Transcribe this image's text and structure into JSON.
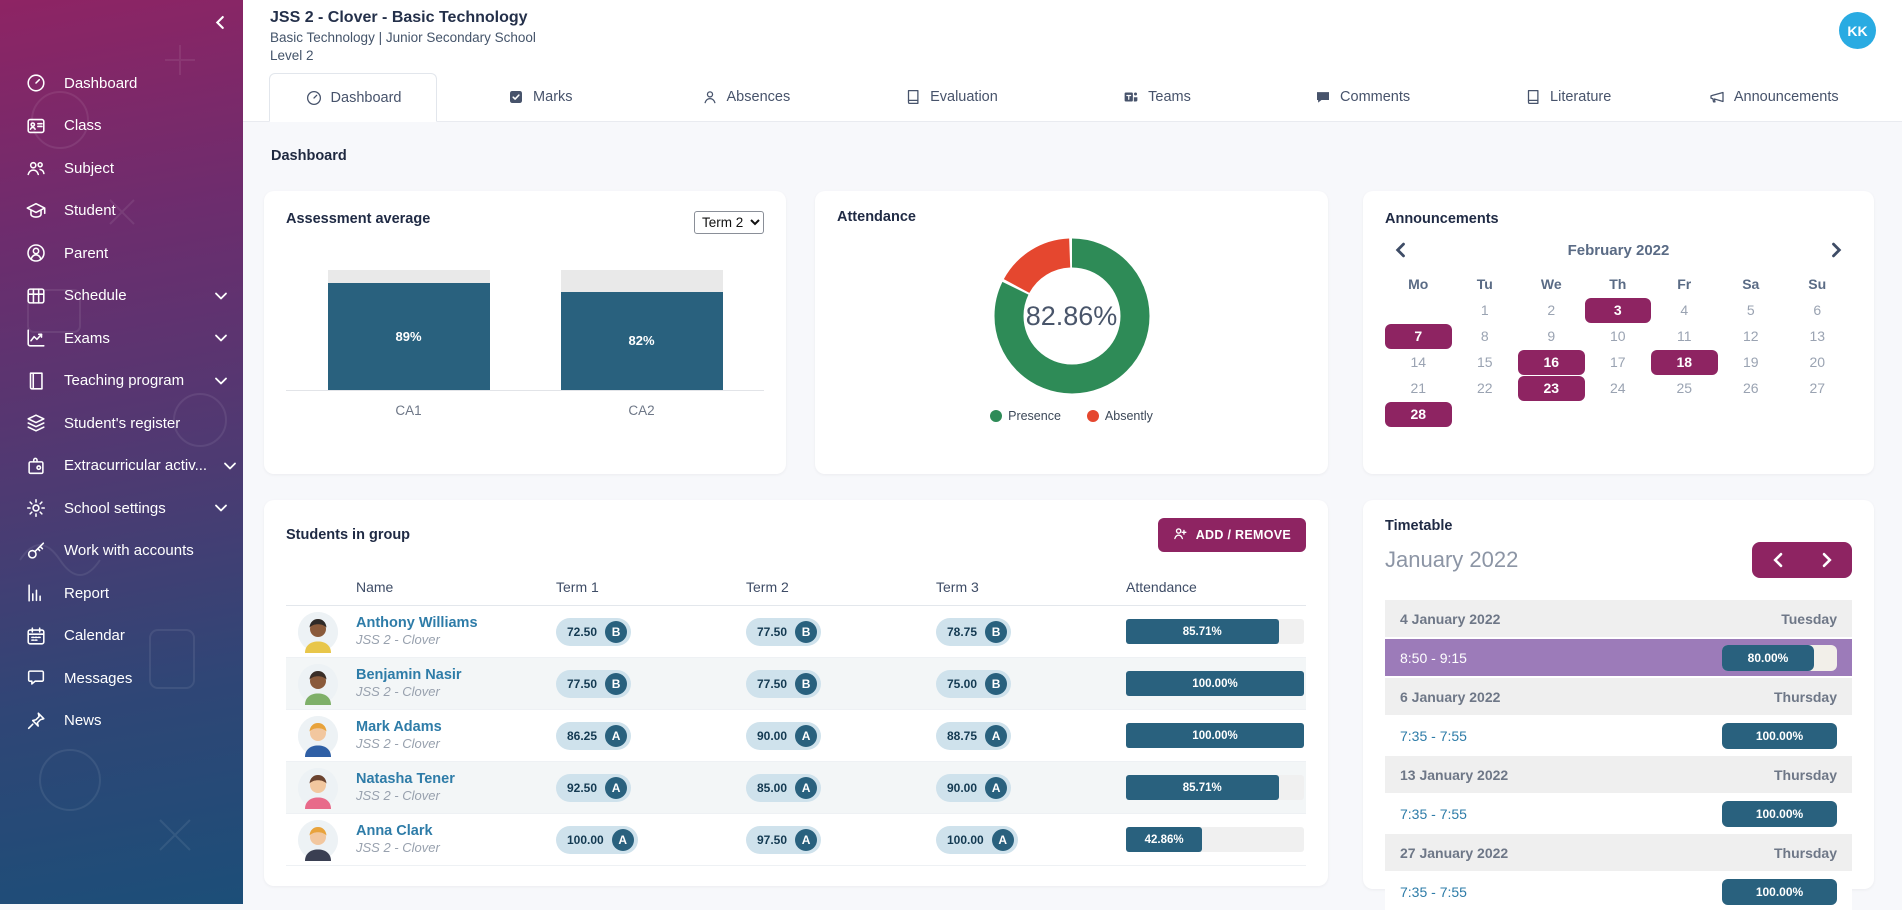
{
  "header": {
    "title": "JSS 2 - Clover - Basic Technology",
    "subtitle": "Basic Technology | Junior Secondary School",
    "level": "Level 2",
    "avatar_initials": "KK"
  },
  "breadcrumb": "Dashboard",
  "sidebar": {
    "items": [
      {
        "icon": "dashboard",
        "label": "Dashboard",
        "has_submenu": false
      },
      {
        "icon": "class",
        "label": "Class",
        "has_submenu": false
      },
      {
        "icon": "subject",
        "label": "Subject",
        "has_submenu": false
      },
      {
        "icon": "student",
        "label": "Student",
        "has_submenu": false
      },
      {
        "icon": "parent",
        "label": "Parent",
        "has_submenu": false
      },
      {
        "icon": "schedule",
        "label": "Schedule",
        "has_submenu": true
      },
      {
        "icon": "exams",
        "label": "Exams",
        "has_submenu": true
      },
      {
        "icon": "teaching-program",
        "label": "Teaching program",
        "has_submenu": true
      },
      {
        "icon": "students-register",
        "label": "Student's register",
        "has_submenu": false
      },
      {
        "icon": "extracurricular",
        "label": "Extracurricular activ...",
        "has_submenu": true
      },
      {
        "icon": "school-settings",
        "label": "School settings",
        "has_submenu": true
      },
      {
        "icon": "work-with-accounts",
        "label": "Work with accounts",
        "has_submenu": false
      },
      {
        "icon": "report",
        "label": "Report",
        "has_submenu": false
      },
      {
        "icon": "calendar",
        "label": "Calendar",
        "has_submenu": false
      },
      {
        "icon": "messages",
        "label": "Messages",
        "has_submenu": false
      },
      {
        "icon": "news",
        "label": "News",
        "has_submenu": false
      }
    ]
  },
  "tabs": [
    {
      "icon": "dashboard",
      "label": "Dashboard",
      "active": true
    },
    {
      "icon": "marks",
      "label": "Marks",
      "active": false
    },
    {
      "icon": "absences",
      "label": "Absences",
      "active": false
    },
    {
      "icon": "evaluation",
      "label": "Evaluation",
      "active": false
    },
    {
      "icon": "teams",
      "label": "Teams",
      "active": false
    },
    {
      "icon": "comments",
      "label": "Comments",
      "active": false
    },
    {
      "icon": "literature",
      "label": "Literature",
      "active": false
    },
    {
      "icon": "announcements",
      "label": "Announcements",
      "active": false
    }
  ],
  "assessment": {
    "title": "Assessment average",
    "term_selector": "Term 2"
  },
  "attendance": {
    "title": "Attendance"
  },
  "chart_data": [
    {
      "type": "bar",
      "title": "Assessment average",
      "categories": [
        "CA1",
        "CA2"
      ],
      "values": [
        89,
        82
      ],
      "value_labels": [
        "89%",
        "82%"
      ],
      "ylim": [
        0,
        100
      ],
      "bar_color": "#29617E",
      "track_color": "#E9E9E9",
      "grid": false
    },
    {
      "type": "pie",
      "title": "Attendance",
      "center_label": "82.86%",
      "slices": [
        {
          "label": "Presence",
          "value": 82.86,
          "color": "#2E8B57"
        },
        {
          "label": "Absently",
          "value": 17.14,
          "color": "#E5472F"
        }
      ],
      "legend_position": "bottom"
    }
  ],
  "announcements": {
    "title": "Announcements",
    "month": "February 2022",
    "day_names": [
      "Mo",
      "Tu",
      "We",
      "Th",
      "Fr",
      "Sa",
      "Su"
    ],
    "first_day_offset": 1,
    "days_in_month": 28,
    "highlighted_days": [
      3,
      7,
      16,
      18,
      23,
      28
    ]
  },
  "students": {
    "title": "Students in group",
    "add_button": "ADD / REMOVE",
    "columns": [
      "Name",
      "Term 1",
      "Term 2",
      "Term 3",
      "Attendance"
    ],
    "rows": [
      {
        "name": "Anthony Williams",
        "group": "JSS 2 - Clover",
        "terms": [
          {
            "score": "72.50",
            "grade": "B"
          },
          {
            "score": "77.50",
            "grade": "B"
          },
          {
            "score": "78.75",
            "grade": "B"
          }
        ],
        "attendance_pct": 85.71,
        "attendance_label": "85.71%",
        "avatar": {
          "skin": "#8A5A3B",
          "hair": "#2F2A28",
          "shirt": "#E8C64A"
        }
      },
      {
        "name": "Benjamin Nasir",
        "group": "JSS 2 - Clover",
        "terms": [
          {
            "score": "77.50",
            "grade": "B"
          },
          {
            "score": "77.50",
            "grade": "B"
          },
          {
            "score": "75.00",
            "grade": "B"
          }
        ],
        "attendance_pct": 100,
        "attendance_label": "100.00%",
        "avatar": {
          "skin": "#8A5A3B",
          "hair": "#3A2E28",
          "shirt": "#7FB069"
        }
      },
      {
        "name": "Mark Adams",
        "group": "JSS 2 - Clover",
        "terms": [
          {
            "score": "86.25",
            "grade": "A"
          },
          {
            "score": "90.00",
            "grade": "A"
          },
          {
            "score": "88.75",
            "grade": "A"
          }
        ],
        "attendance_pct": 100,
        "attendance_label": "100.00%",
        "avatar": {
          "skin": "#F2C79F",
          "hair": "#E8A33C",
          "shirt": "#2F5FA5"
        }
      },
      {
        "name": "Natasha Tener",
        "group": "JSS 2 - Clover",
        "terms": [
          {
            "score": "92.50",
            "grade": "A"
          },
          {
            "score": "85.00",
            "grade": "A"
          },
          {
            "score": "90.00",
            "grade": "A"
          }
        ],
        "attendance_pct": 85.71,
        "attendance_label": "85.71%",
        "avatar": {
          "skin": "#F2C79F",
          "hair": "#6B4430",
          "shirt": "#E86A8A"
        }
      },
      {
        "name": "Anna Clark",
        "group": "JSS 2 - Clover",
        "terms": [
          {
            "score": "100.00",
            "grade": "A"
          },
          {
            "score": "97.50",
            "grade": "A"
          },
          {
            "score": "100.00",
            "grade": "A"
          }
        ],
        "attendance_pct": 42.86,
        "attendance_label": "42.86%",
        "avatar": {
          "skin": "#F2C79F",
          "hair": "#E8A33C",
          "shirt": "#3A3F52"
        }
      }
    ]
  },
  "timetable": {
    "title": "Timetable",
    "month": "January 2022",
    "rows": [
      {
        "kind": "date",
        "date": "4 January 2022",
        "weekday": "Tuesday"
      },
      {
        "kind": "session",
        "time": "8:50 - 9:15",
        "value": 80,
        "label": "80.00%",
        "selected": true
      },
      {
        "kind": "date",
        "date": "6 January 2022",
        "weekday": "Thursday"
      },
      {
        "kind": "session",
        "time": "7:35 - 7:55",
        "value": 100,
        "label": "100.00%",
        "selected": false
      },
      {
        "kind": "date",
        "date": "13 January 2022",
        "weekday": "Thursday"
      },
      {
        "kind": "session",
        "time": "7:35 - 7:55",
        "value": 100,
        "label": "100.00%",
        "selected": false
      },
      {
        "kind": "date",
        "date": "27 January 2022",
        "weekday": "Thursday"
      },
      {
        "kind": "session",
        "time": "7:35 - 7:55",
        "value": 100,
        "label": "100.00%",
        "selected": false
      }
    ]
  },
  "colors": {
    "accent_magenta": "#8E2462",
    "teal": "#29617E",
    "presence_green": "#2E8B57",
    "absent_red": "#E5472F",
    "selected_row_purple": "#9C7BB9",
    "avatar_blue": "#29ABE2",
    "link_blue": "#2E7CA8"
  }
}
